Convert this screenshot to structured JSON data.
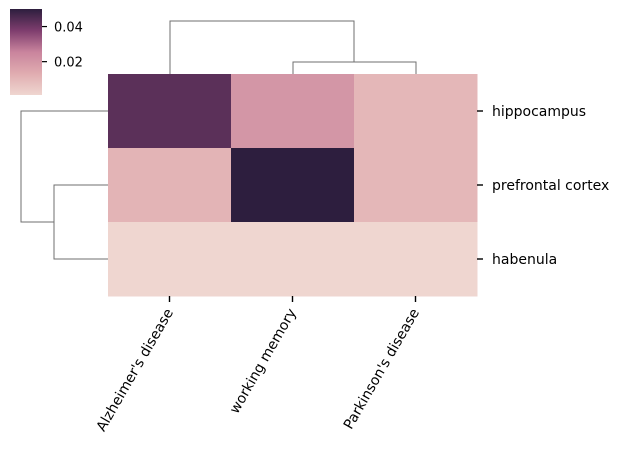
{
  "chart_data": {
    "type": "heatmap",
    "title": "",
    "xlabel": "",
    "ylabel": "",
    "columns": [
      "Alzheimer's disease",
      "working memory",
      "Parkinson's disease"
    ],
    "rows": [
      "hippocampus",
      "prefrontal cortex",
      "habenula"
    ],
    "values": [
      [
        0.043,
        0.02,
        0.01
      ],
      [
        0.011,
        0.05,
        0.01
      ],
      [
        0.001,
        0.001,
        0.001
      ]
    ],
    "value_range": [
      0.001,
      0.05
    ],
    "colormap": [
      "#efd6d0",
      "#e0acb0",
      "#c9849d",
      "#7e3d6e",
      "#2d1e3e"
    ],
    "colorbar": {
      "ticks": [
        0.02,
        0.04
      ],
      "tick_labels": [
        "0.02",
        "0.04"
      ]
    },
    "row_dendrogram": "hippocampus separate; prefrontal cortex + habenula joined",
    "column_dendrogram": "Alzheimer's disease separate; working memory + Parkinson's disease joined"
  }
}
